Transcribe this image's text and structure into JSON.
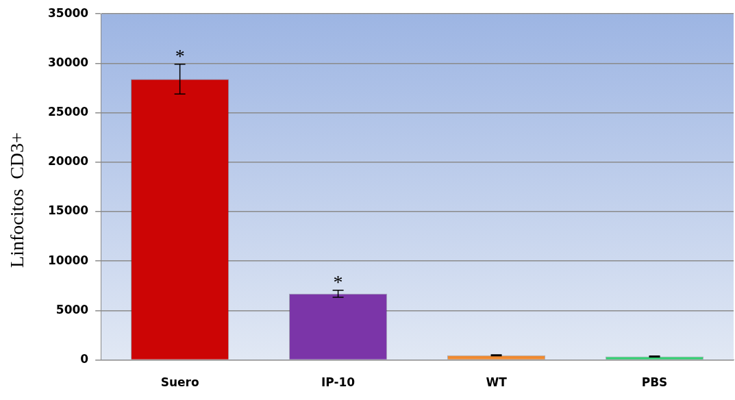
{
  "chart_data": {
    "type": "bar",
    "ylabel": "Linfocitos  CD3+",
    "categories": [
      "Suero",
      "IP-10",
      "WT",
      "PBS"
    ],
    "values": [
      28400,
      6700,
      470,
      350
    ],
    "colors": [
      "#cc0505",
      "#7b35a8",
      "#f08a30",
      "#2ecc6e"
    ],
    "errors": [
      1500,
      350,
      50,
      50
    ],
    "ylim": [
      0,
      35000
    ],
    "yticks": [
      0,
      5000,
      10000,
      15000,
      20000,
      25000,
      30000,
      35000
    ],
    "grid": "y",
    "annotations": [
      {
        "text": "*",
        "x": "Suero",
        "y": 29900
      },
      {
        "text": "*",
        "x": "IP-10",
        "y": 7050
      }
    ]
  }
}
